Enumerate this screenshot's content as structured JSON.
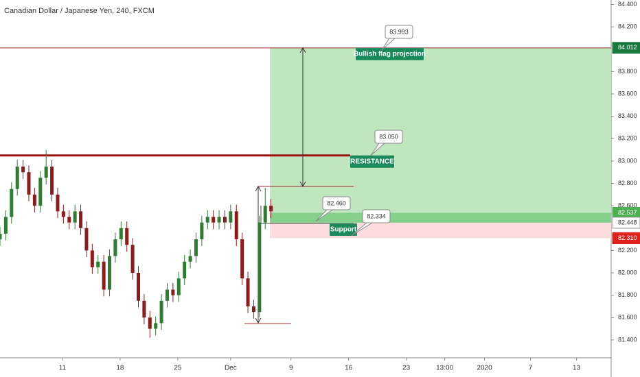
{
  "chart_data": {
    "type": "candlestick",
    "title": "Canadian Dollar / Japanese Yen, 240, FXCM",
    "x": [
      0,
      3,
      6,
      9,
      12,
      15,
      18,
      21,
      24,
      27,
      30,
      33,
      36,
      39,
      42,
      45,
      48,
      51,
      54,
      57,
      60,
      63,
      66,
      69,
      72,
      75,
      78,
      81,
      84,
      87,
      90,
      93,
      96,
      99,
      102,
      105,
      108,
      111,
      114,
      117,
      120,
      123,
      126,
      129,
      132,
      135,
      138,
      141
    ],
    "open": [
      82.3,
      82.35,
      82.5,
      82.75,
      82.95,
      82.9,
      82.7,
      82.6,
      82.85,
      82.95,
      82.7,
      82.55,
      82.5,
      82.45,
      82.55,
      82.4,
      82.2,
      82.05,
      82.1,
      81.85,
      82.15,
      82.3,
      82.4,
      82.25,
      82.0,
      81.75,
      81.6,
      81.5,
      81.55,
      81.75,
      81.85,
      81.8,
      81.95,
      82.1,
      82.15,
      82.3,
      82.45,
      82.5,
      82.45,
      82.5,
      82.45,
      82.55,
      82.3,
      81.95,
      81.7,
      81.65,
      82.45,
      82.6
    ],
    "high": [
      82.41,
      82.56,
      82.81,
      83.01,
      83.01,
      82.96,
      82.76,
      82.91,
      83.1,
      83.01,
      82.76,
      82.61,
      82.56,
      82.61,
      82.61,
      82.46,
      82.26,
      82.16,
      82.16,
      82.21,
      82.36,
      82.46,
      82.46,
      82.31,
      82.06,
      81.81,
      81.66,
      81.61,
      81.81,
      81.91,
      81.91,
      82.01,
      82.16,
      82.21,
      82.36,
      82.51,
      82.56,
      82.56,
      82.56,
      82.56,
      82.61,
      82.61,
      82.36,
      82.01,
      81.76,
      82.51,
      82.76,
      82.66
    ],
    "low": [
      82.24,
      82.29,
      82.44,
      82.69,
      82.84,
      82.64,
      82.54,
      82.54,
      82.79,
      82.64,
      82.49,
      82.44,
      82.39,
      82.39,
      82.34,
      82.14,
      81.99,
      81.99,
      81.79,
      81.79,
      82.09,
      82.24,
      82.19,
      81.94,
      81.69,
      81.54,
      81.42,
      81.44,
      81.49,
      81.69,
      81.74,
      81.74,
      81.89,
      82.04,
      82.09,
      82.24,
      82.39,
      82.39,
      82.39,
      82.39,
      82.39,
      82.24,
      81.89,
      81.64,
      81.59,
      81.6,
      82.39,
      82.49
    ],
    "close": [
      82.35,
      82.5,
      82.75,
      82.95,
      82.9,
      82.7,
      82.6,
      82.85,
      82.95,
      82.7,
      82.55,
      82.5,
      82.45,
      82.55,
      82.4,
      82.2,
      82.05,
      82.1,
      81.85,
      82.15,
      82.3,
      82.4,
      82.25,
      82.0,
      81.75,
      81.6,
      81.5,
      81.55,
      81.75,
      81.85,
      81.8,
      81.95,
      82.1,
      82.15,
      82.3,
      82.45,
      82.5,
      82.45,
      82.5,
      82.45,
      82.55,
      82.3,
      81.95,
      81.7,
      81.65,
      82.45,
      82.6,
      82.55
    ],
    "up_color": "#2e7d32",
    "down_color": "#8e1b1b",
    "xlim": [
      0,
      318
    ],
    "xticks": [
      {
        "value": 32.5,
        "label": "11"
      },
      {
        "value": 62.5,
        "label": "18"
      },
      {
        "value": 92.5,
        "label": "25"
      },
      {
        "value": 120,
        "label": "Dec"
      },
      {
        "value": 151.4,
        "label": "9"
      },
      {
        "value": 181.4,
        "label": "16"
      },
      {
        "value": 211.4,
        "label": "23"
      },
      {
        "value": 231.4,
        "label": "13:00"
      },
      {
        "value": 252.1,
        "label": "2020"
      },
      {
        "value": 276,
        "label": "7"
      },
      {
        "value": 300,
        "label": "13"
      }
    ],
    "ylim": [
      81.24,
      84.44
    ],
    "yticks": [
      {
        "value": 84.4,
        "label": "84.400"
      },
      {
        "value": 84.2,
        "label": "84.200"
      },
      {
        "value": 83.8,
        "label": "83.800"
      },
      {
        "value": 83.6,
        "label": "83.600"
      },
      {
        "value": 83.4,
        "label": "83.400"
      },
      {
        "value": 83.2,
        "label": "83.200"
      },
      {
        "value": 83,
        "label": "83.000"
      },
      {
        "value": 82.8,
        "label": "82.800"
      },
      {
        "value": 82.6,
        "label": "82.600"
      },
      {
        "value": 82.2,
        "label": "82.200"
      },
      {
        "value": 82,
        "label": "82.000"
      },
      {
        "value": 81.8,
        "label": "81.800"
      },
      {
        "value": 81.6,
        "label": "81.600"
      },
      {
        "value": 81.4,
        "label": "81.400"
      }
    ],
    "projection": {
      "value": 84.012,
      "label": "84.012",
      "text": "Bullish flag projection",
      "callout": {
        "value": 83.993,
        "label": "83.993"
      }
    },
    "resistance": {
      "value": 83.05,
      "label": "83.050",
      "text": "RESISTANCE"
    },
    "current": {
      "value": 82.537,
      "label": "82.537"
    },
    "zone_top": {
      "value": 82.448,
      "label": "82.448"
    },
    "support": {
      "value": 82.31,
      "label": "82.310",
      "text": "Support",
      "callouts": [
        {
          "value": 82.46,
          "label": "82.460"
        },
        {
          "value": 82.334,
          "label": "82.334"
        }
      ]
    }
  }
}
